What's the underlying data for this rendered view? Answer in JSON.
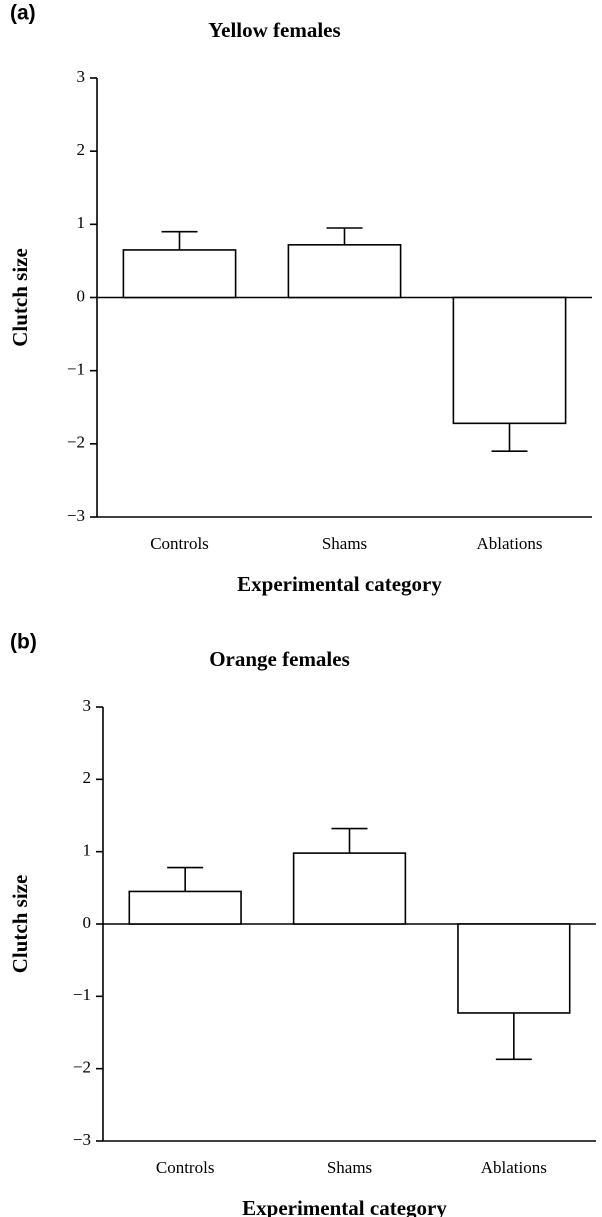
{
  "chart_data": [
    {
      "type": "bar",
      "panel_label": "(a)",
      "title": "Yellow females",
      "categories": [
        "Controls",
        "Shams",
        "Ablations"
      ],
      "values": [
        0.65,
        0.72,
        -1.72
      ],
      "errors": [
        0.25,
        0.23,
        0.38
      ],
      "color": "#ffffff",
      "xlabel": "Experimental category",
      "ylabel": "Clutch size",
      "ylim": [
        -3,
        3
      ],
      "yticks": [
        {
          "value": -3,
          "label": "−3"
        },
        {
          "value": -2,
          "label": "−2"
        },
        {
          "value": -1,
          "label": "−1"
        },
        0,
        1,
        2,
        3
      ]
    },
    {
      "type": "bar",
      "panel_label": "(b)",
      "title": "Orange females",
      "categories": [
        "Controls",
        "Shams",
        "Ablations"
      ],
      "values": [
        0.45,
        0.98,
        -1.23
      ],
      "errors": [
        0.33,
        0.34,
        0.64
      ],
      "color": "#ffffff",
      "xlabel": "Experimental category",
      "ylabel": "Clutch size",
      "ylim": [
        -3,
        3
      ],
      "yticks": [
        {
          "value": -3,
          "label": "−3"
        },
        {
          "value": -2,
          "label": "−2"
        },
        {
          "value": -1,
          "label": "−1"
        },
        0,
        1,
        2,
        3
      ]
    }
  ]
}
